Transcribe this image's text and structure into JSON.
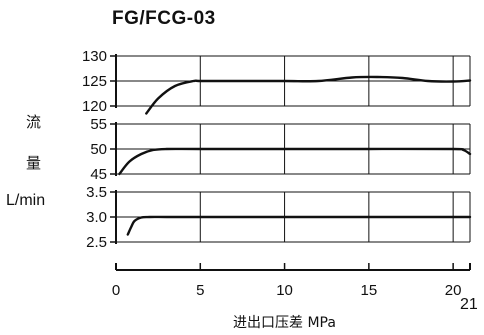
{
  "header": {
    "title": "FG/FCG-03"
  },
  "y_axis_label": {
    "line1": "流",
    "line2": "量",
    "unit": "L/min"
  },
  "x_axis_label": "进出口压差  MPa",
  "page_number": "21",
  "colors": {
    "ink": "#111111",
    "background": "#ffffff"
  },
  "chart_data": [
    {
      "type": "line",
      "title": "",
      "xlabel": "进出口压差  MPa",
      "ylabel": "流量 L/min",
      "xlim": [
        0,
        21
      ],
      "ylim": [
        120,
        130
      ],
      "yticks": [
        "130",
        "125",
        "120"
      ],
      "grid": true,
      "series": [
        {
          "x": [
            1.8,
            2.5,
            3.5,
            4.6,
            5,
            7,
            10,
            12,
            14,
            15.5,
            17,
            18.5,
            20,
            21
          ],
          "y": [
            118.5,
            121.5,
            124,
            125,
            125,
            125,
            125,
            125,
            125.7,
            125.8,
            125.6,
            125,
            124.9,
            125.1
          ]
        }
      ]
    },
    {
      "type": "line",
      "title": "",
      "xlim": [
        0,
        21
      ],
      "ylim": [
        45,
        55
      ],
      "yticks": [
        "55",
        "50",
        "45"
      ],
      "grid": true,
      "series": [
        {
          "x": [
            0.2,
            0.8,
            1.5,
            2.2,
            3,
            5,
            10,
            15,
            20,
            20.6,
            21
          ],
          "y": [
            45,
            47.5,
            49,
            49.8,
            50,
            50,
            50,
            50,
            50,
            49.8,
            49
          ]
        }
      ]
    },
    {
      "type": "line",
      "title": "",
      "xlim": [
        0,
        21
      ],
      "ylim": [
        2.5,
        3.5
      ],
      "yticks": [
        "3.5",
        "3.0",
        "2.5"
      ],
      "grid": true,
      "series": [
        {
          "x": [
            0.7,
            0.9,
            1.1,
            1.5,
            2,
            3,
            5,
            10,
            15,
            20,
            21
          ],
          "y": [
            2.65,
            2.8,
            2.92,
            2.99,
            3.0,
            3.0,
            3.0,
            3.0,
            3.0,
            3.0,
            3.0
          ]
        }
      ]
    }
  ],
  "x_axis": {
    "ticks": [
      "0",
      "5",
      "10",
      "15",
      "20"
    ],
    "tick_values": [
      0,
      5,
      10,
      15,
      20
    ],
    "range": [
      0,
      21
    ]
  }
}
